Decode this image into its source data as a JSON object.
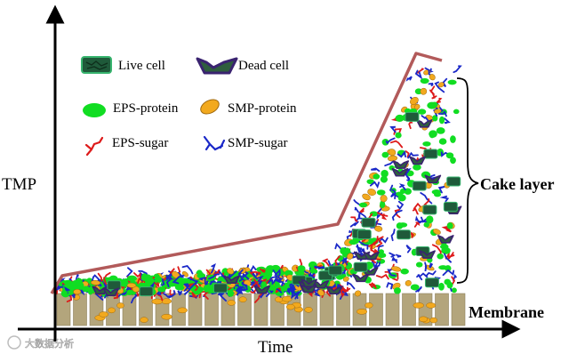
{
  "axes": {
    "y_label": "TMP",
    "x_label": "Time"
  },
  "legend": {
    "live_cell": "Live cell",
    "dead_cell": "Dead cell",
    "eps_protein": "EPS-protein",
    "smp_protein": "SMP-protein",
    "eps_sugar": "EPS-sugar",
    "smp_sugar": "SMP-sugar"
  },
  "labels": {
    "cake_layer": "Cake layer",
    "membrane": "Membrane"
  },
  "watermark": "大数据分析",
  "colors": {
    "tmp_curve": "#b25a5a",
    "live_cell": "#1f5a3a",
    "dead_cell_fill": "#2f5e3e",
    "dead_cell_edge": "#3a2370",
    "eps_protein": "#11dd22",
    "smp_protein": "#f2a91e",
    "eps_sugar": "#dd1a1a",
    "smp_sugar": "#1a28c8",
    "membrane": "#b3a57c"
  }
}
